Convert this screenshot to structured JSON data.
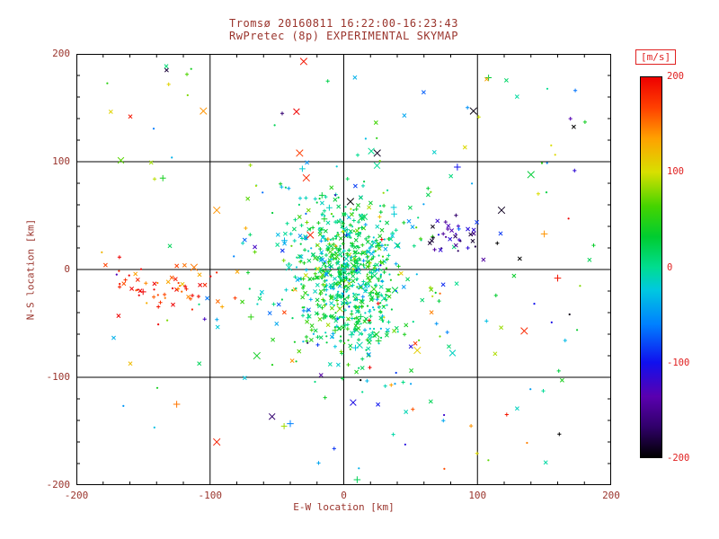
{
  "window": {
    "background": "#ffffff"
  },
  "colors": {
    "annotation": "#9a342c",
    "colorbar_text": "#e02020",
    "axis": "#000000"
  },
  "text": {
    "title": "Tromsø 20160811 16:22:00-16:23:43",
    "subtitle": "RwPretec (8p) EXPERIMENTAL SKYMAP",
    "xlabel": "E-W location [km]",
    "ylabel": "N-S location [km]",
    "colorbar_label": "[m/s]"
  },
  "chart_data": {
    "type": "scatter",
    "title": "Tromsø 20160811 16:22:00-16:23:43",
    "subtitle": "RwPretec (8p) EXPERIMENTAL SKYMAP",
    "xlabel": "E-W location [km]",
    "ylabel": "N-S location [km]",
    "xlim": [
      -200,
      200
    ],
    "ylim": [
      -200,
      200
    ],
    "xticks": [
      -200,
      -100,
      0,
      100,
      200
    ],
    "yticks": [
      -200,
      -100,
      0,
      100,
      200
    ],
    "minor_tick_step": 20,
    "grid": true,
    "colorbar": {
      "label": "[m/s]",
      "min": -200,
      "max": 200,
      "ticks": [
        200,
        100,
        0,
        -100,
        -200
      ],
      "colormap": "rainbow",
      "stops": [
        {
          "t": 0.0,
          "c": "#000000"
        },
        {
          "t": 0.08,
          "c": "#30006a"
        },
        {
          "t": 0.16,
          "c": "#5a00b0"
        },
        {
          "t": 0.25,
          "c": "#1010ee"
        },
        {
          "t": 0.35,
          "c": "#0080ff"
        },
        {
          "t": 0.44,
          "c": "#00c8e0"
        },
        {
          "t": 0.5,
          "c": "#00dd90"
        },
        {
          "t": 0.58,
          "c": "#00cc30"
        },
        {
          "t": 0.66,
          "c": "#44d400"
        },
        {
          "t": 0.75,
          "c": "#d8e000"
        },
        {
          "t": 0.84,
          "c": "#ffa000"
        },
        {
          "t": 0.92,
          "c": "#ff4000"
        },
        {
          "t": 1.0,
          "c": "#ee0000"
        }
      ]
    },
    "symbols": {
      "types": [
        "dot",
        "plus",
        "cross"
      ],
      "weights": [
        0.3,
        0.35,
        0.35
      ],
      "small_half": 2.1,
      "large_half": 3.4,
      "large_prob": 0.07,
      "dot_radius": 1.1,
      "notable_half": 3.8
    },
    "clusters": [
      {
        "name": "central-core",
        "shape": "gauss",
        "cx": 2,
        "cy": -5,
        "sx": 20,
        "sy": 34,
        "count": 620,
        "v_mean": 15,
        "v_sd": 30,
        "seed": 101
      },
      {
        "name": "central-halo",
        "shape": "gauss",
        "cx": 0,
        "cy": -15,
        "sx": 42,
        "sy": 62,
        "count": 160,
        "v_mean": 10,
        "v_sd": 55,
        "seed": 202
      },
      {
        "name": "west-red-stream",
        "shape": "gauss",
        "cx": -133,
        "cy": -18,
        "sx": 24,
        "sy": 10,
        "count": 60,
        "v_mean": 180,
        "v_sd": 35,
        "seed": 303
      },
      {
        "name": "east-blue-patch",
        "shape": "gauss",
        "cx": 86,
        "cy": 30,
        "sx": 12,
        "sy": 8,
        "count": 34,
        "v_mean": -150,
        "v_sd": 40,
        "seed": 404
      },
      {
        "name": "background",
        "shape": "uniform",
        "x0": -190,
        "x1": 190,
        "y0": -185,
        "y1": 195,
        "count": 150,
        "v_mean": 0,
        "v_sd": 110,
        "seed": 505
      }
    ],
    "notable_points": [
      {
        "x": -105,
        "y": 147,
        "v": 140,
        "sym": "cross"
      },
      {
        "x": -30,
        "y": 193,
        "v": 190,
        "sym": "cross"
      },
      {
        "x": 97,
        "y": 147,
        "v": -195,
        "sym": "cross"
      },
      {
        "x": -33,
        "y": 108,
        "v": 170,
        "sym": "cross"
      },
      {
        "x": -28,
        "y": 85,
        "v": 180,
        "sym": "cross"
      },
      {
        "x": -95,
        "y": 55,
        "v": 140,
        "sym": "cross"
      },
      {
        "x": -112,
        "y": 2,
        "v": 150,
        "sym": "cross"
      },
      {
        "x": -25,
        "y": 32,
        "v": 185,
        "sym": "cross"
      },
      {
        "x": 5,
        "y": 63,
        "v": -200,
        "sym": "cross"
      },
      {
        "x": 25,
        "y": 108,
        "v": -190,
        "sym": "cross"
      },
      {
        "x": 118,
        "y": 55,
        "v": -190,
        "sym": "cross"
      },
      {
        "x": 140,
        "y": 88,
        "v": 30,
        "sym": "cross"
      },
      {
        "x": 150,
        "y": 33,
        "v": 140,
        "sym": "plus"
      },
      {
        "x": 160,
        "y": -8,
        "v": 190,
        "sym": "plus"
      },
      {
        "x": 135,
        "y": -57,
        "v": 180,
        "sym": "cross"
      },
      {
        "x": 55,
        "y": -75,
        "v": 110,
        "sym": "cross"
      },
      {
        "x": -65,
        "y": -80,
        "v": 40,
        "sym": "cross"
      },
      {
        "x": -125,
        "y": -125,
        "v": 150,
        "sym": "plus"
      },
      {
        "x": -95,
        "y": -160,
        "v": 185,
        "sym": "cross"
      },
      {
        "x": -40,
        "y": -143,
        "v": -60,
        "sym": "plus"
      },
      {
        "x": 75,
        "y": -135,
        "v": -120,
        "sym": "dot"
      },
      {
        "x": 10,
        "y": -195,
        "v": 20,
        "sym": "plus"
      },
      {
        "x": 85,
        "y": 95,
        "v": -100,
        "sym": "plus"
      }
    ]
  }
}
